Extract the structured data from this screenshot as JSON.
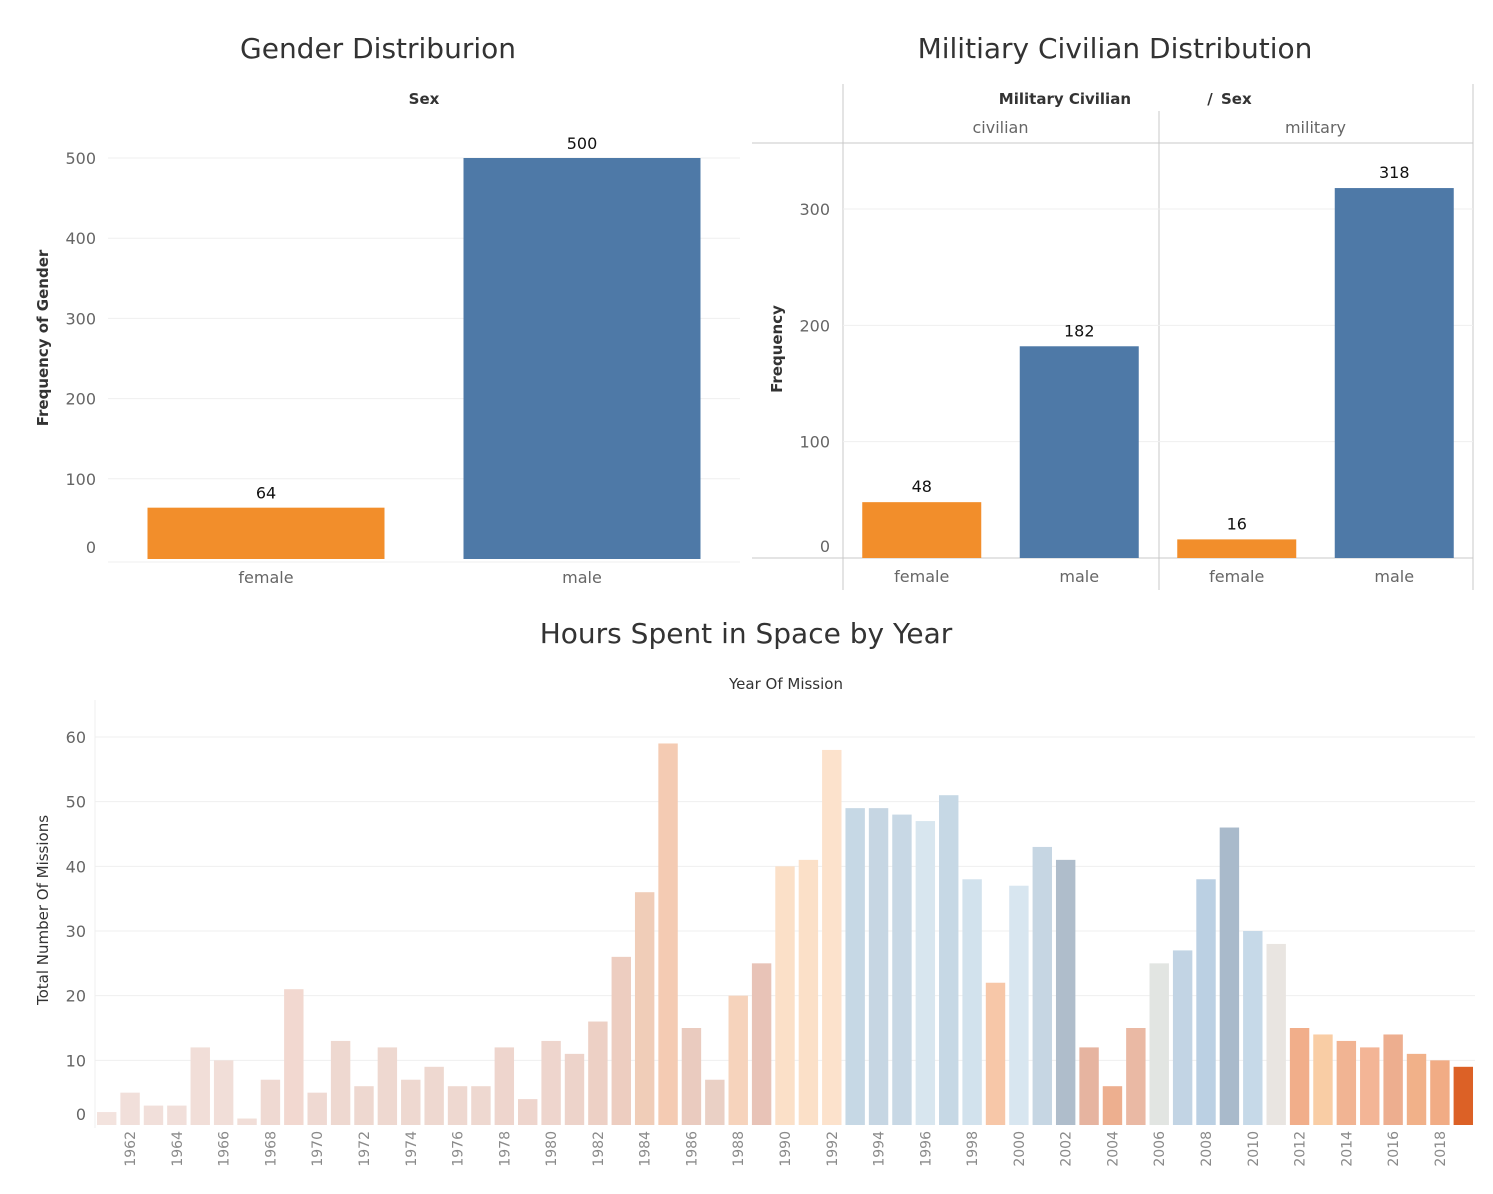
{
  "chart_data": [
    {
      "type": "bar",
      "title": "Gender Distriburion",
      "column_header": "Sex",
      "ylabel": "Frequency of Gender",
      "categories": [
        "female",
        "male"
      ],
      "values": [
        64,
        500
      ],
      "data_labels": [
        "64",
        "500"
      ],
      "colors": [
        "#F28E2B",
        "#4E79A7"
      ],
      "ylim": [
        0,
        560
      ],
      "yticks": [
        "0",
        "100",
        "200",
        "300",
        "400",
        "500"
      ],
      "grid": true
    },
    {
      "type": "bar",
      "title": "Militiary Civilian Distribution",
      "column_header": "Military Civilian",
      "column_header_sep": "/",
      "column_header_sub": "Sex",
      "ylabel": "Frequency",
      "groups": [
        "civilian",
        "military"
      ],
      "categories": [
        "female",
        "male"
      ],
      "series": [
        {
          "group": "civilian",
          "values": [
            48,
            182
          ],
          "data_labels": [
            "48",
            "182"
          ]
        },
        {
          "group": "military",
          "values": [
            16,
            318
          ],
          "data_labels": [
            "16",
            "318"
          ]
        }
      ],
      "colors": [
        "#F28E2B",
        "#4E79A7"
      ],
      "ylim": [
        0,
        355
      ],
      "yticks": [
        "0",
        "100",
        "200",
        "300"
      ],
      "grid": true
    },
    {
      "type": "bar",
      "title": "Hours Spent in Space by Year",
      "column_header": "Year Of Mission",
      "ylabel": "Total Number Of Missions",
      "x": [
        1961,
        1962,
        1963,
        1964,
        1965,
        1966,
        1967,
        1968,
        1969,
        1970,
        1971,
        1972,
        1973,
        1974,
        1975,
        1976,
        1977,
        1978,
        1979,
        1980,
        1981,
        1982,
        1983,
        1984,
        1985,
        1986,
        1987,
        1988,
        1989,
        1990,
        1991,
        1992,
        1993,
        1994,
        1995,
        1996,
        1997,
        1998,
        1999,
        2000,
        2001,
        2002,
        2003,
        2004,
        2005,
        2006,
        2007,
        2008,
        2009,
        2010,
        2011,
        2012,
        2013,
        2014,
        2015,
        2016,
        2017,
        2018,
        2019
      ],
      "values": [
        2,
        5,
        3,
        3,
        12,
        10,
        1,
        7,
        21,
        5,
        13,
        6,
        12,
        7,
        9,
        6,
        6,
        12,
        4,
        13,
        11,
        16,
        26,
        36,
        59,
        15,
        7,
        20,
        25,
        40,
        41,
        58,
        49,
        49,
        48,
        47,
        51,
        38,
        22,
        37,
        43,
        41,
        12,
        6,
        15,
        25,
        27,
        38,
        46,
        30,
        28,
        15,
        14,
        13,
        12,
        14,
        11,
        10,
        9
      ],
      "colors": [
        "#F3E3DE",
        "#F1DFDA",
        "#F1DFDA",
        "#F1DFDA",
        "#F1DED8",
        "#F1DED8",
        "#F1DED8",
        "#EFD9D2",
        "#F2D8D0",
        "#EFD9D2",
        "#EED8D0",
        "#EED8D0",
        "#EED8D0",
        "#EED8D0",
        "#EED8D0",
        "#EED8D0",
        "#EED8D0",
        "#EED5CD",
        "#EED5CD",
        "#EED5CD",
        "#EDD3CA",
        "#EDD0C5",
        "#EDCDC0",
        "#F0CDB8",
        "#F4CBB3",
        "#EACBBF",
        "#EAD0C5",
        "#F6D3BC",
        "#E8C3B7",
        "#FBE0C8",
        "#FBE0C8",
        "#FCE2CC",
        "#C6D8E5",
        "#C6D6E3",
        "#C8D8E5",
        "#D8E6EF",
        "#C6D8E5",
        "#D2E2ED",
        "#F7C7A8",
        "#D8E6F0",
        "#C6D6E3",
        "#AFBDCB",
        "#E6B4A0",
        "#EDAF8F",
        "#EAB9A4",
        "#E2E5E2",
        "#C2D4E4",
        "#BBD0E3",
        "#A9BACB",
        "#C6D9E8",
        "#E9E5E1",
        "#F1AE8A",
        "#F9CDA5",
        "#F1B493",
        "#F3B596",
        "#EDAE8F",
        "#F1B189",
        "#F1AC85",
        "#DC6126"
      ],
      "xtick_labels": [
        "1962",
        "1964",
        "1966",
        "1968",
        "1970",
        "1972",
        "1974",
        "1976",
        "1978",
        "1980",
        "1982",
        "1984",
        "1986",
        "1988",
        "1990",
        "1992",
        "1994",
        "1996",
        "1998",
        "2000",
        "2002",
        "2004",
        "2006",
        "2008",
        "2010",
        "2012",
        "2014",
        "2016",
        "2018"
      ],
      "ylim": [
        0,
        65
      ],
      "yticks": [
        "0",
        "10",
        "20",
        "30",
        "40",
        "50",
        "60"
      ],
      "grid": true
    }
  ]
}
